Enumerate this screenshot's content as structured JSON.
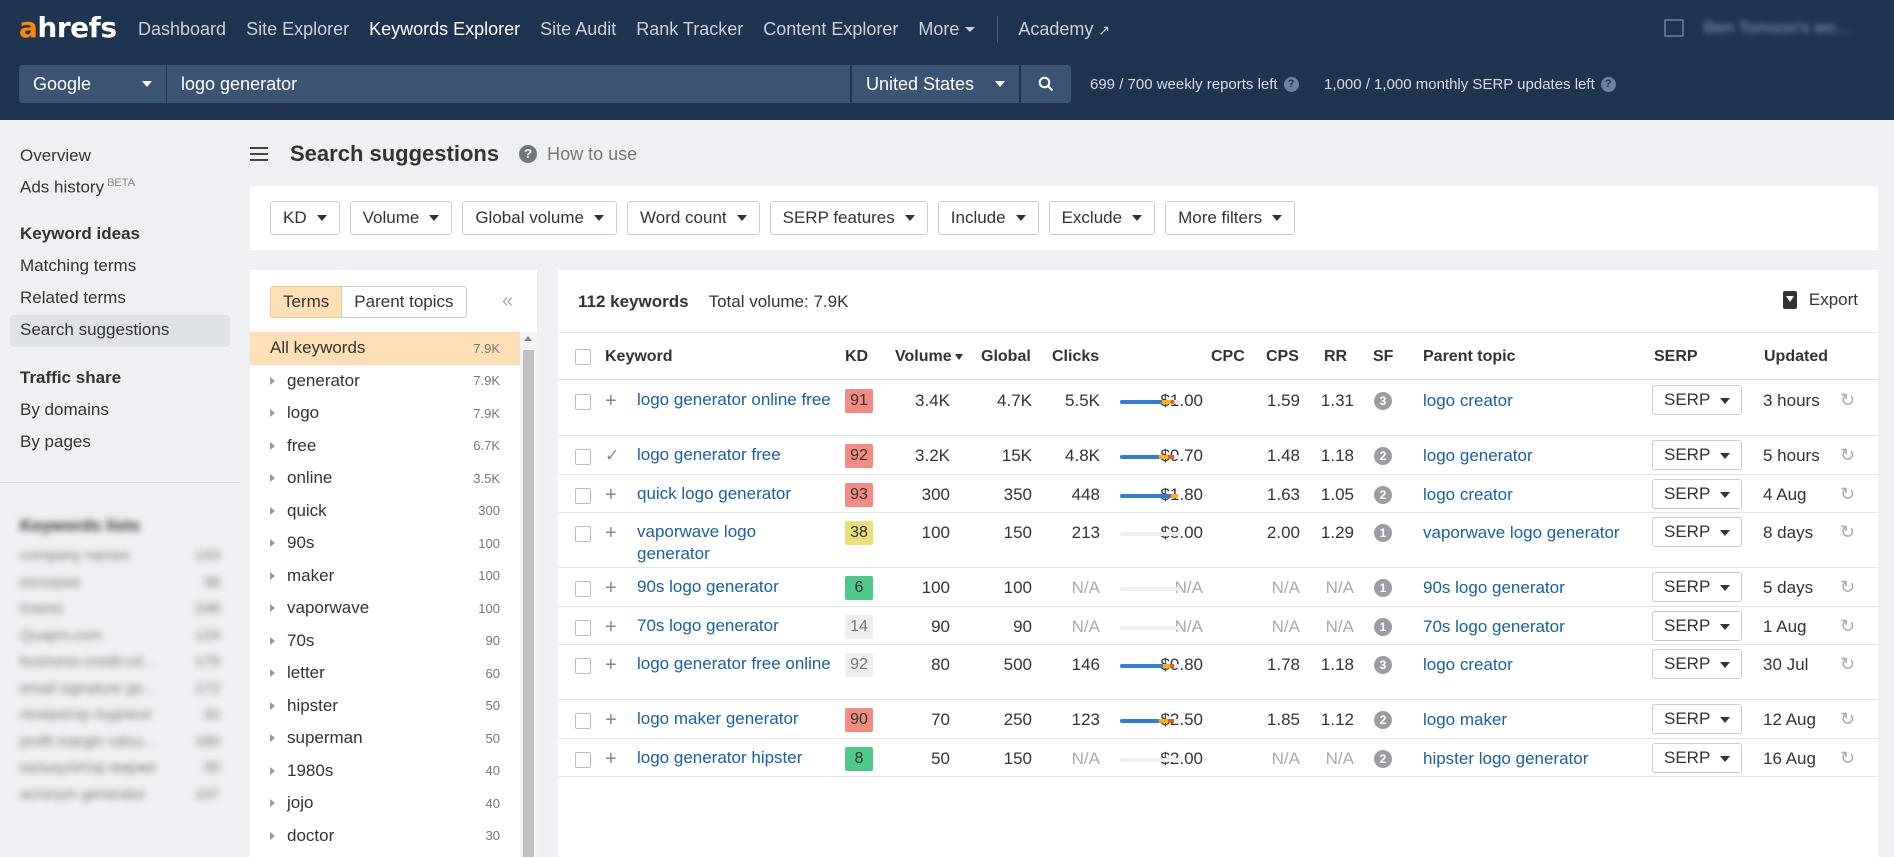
{
  "brand": {
    "logo_a": "a",
    "logo_rest": "hrefs",
    "accent": "#ff8800",
    "nav_bg": "#1f3450"
  },
  "nav": {
    "items": [
      {
        "label": "Dashboard",
        "active": false
      },
      {
        "label": "Site Explorer",
        "active": false
      },
      {
        "label": "Keywords Explorer",
        "active": true
      },
      {
        "label": "Site Audit",
        "active": false
      },
      {
        "label": "Rank Tracker",
        "active": false
      },
      {
        "label": "Content Explorer",
        "active": false
      }
    ],
    "more": "More",
    "academy": "Academy",
    "account": "Ben Tomson's wo..."
  },
  "search": {
    "engine": "Google",
    "query": "logo generator",
    "country": "United States",
    "quota_reports": "699 / 700 weekly reports left",
    "quota_serp": "1,000 / 1,000 monthly SERP updates left"
  },
  "sidebar": {
    "overview": "Overview",
    "ads_history": "Ads history",
    "beta": "BETA",
    "keyword_ideas_heading": "Keyword ideas",
    "matching_terms": "Matching terms",
    "related_terms": "Related terms",
    "search_suggestions": "Search suggestions",
    "traffic_share_heading": "Traffic share",
    "by_domains": "By domains",
    "by_pages": "By pages",
    "keywords_lists_heading": "Keywords lists",
    "lists": [
      {
        "name": "company names",
        "count": "143"
      },
      {
        "name": "escorpse",
        "count": "38"
      },
      {
        "name": "Insess",
        "count": "248"
      },
      {
        "name": "Quaprs.com",
        "count": "124"
      },
      {
        "name": "business-credit-cd...",
        "count": "179"
      },
      {
        "name": "email signature ge...",
        "count": "172"
      },
      {
        "name": "генератор подписи",
        "count": "32"
      },
      {
        "name": "profit margin calcu...",
        "count": "180"
      },
      {
        "name": "калькулятор маржи",
        "count": "30"
      },
      {
        "name": "acronym generator",
        "count": "107"
      }
    ]
  },
  "main": {
    "title": "Search suggestions",
    "how_to_use": "How to use",
    "filters": [
      "KD",
      "Volume",
      "Global volume",
      "Word count",
      "SERP features",
      "Include",
      "Exclude",
      "More filters"
    ]
  },
  "terms_panel": {
    "tab_terms": "Terms",
    "tab_parent": "Parent topics",
    "collapse": "«",
    "all": {
      "label": "All keywords",
      "count": "7.9K"
    },
    "items": [
      {
        "label": "generator",
        "count": "7.9K"
      },
      {
        "label": "logo",
        "count": "7.9K"
      },
      {
        "label": "free",
        "count": "6.7K"
      },
      {
        "label": "online",
        "count": "3.5K"
      },
      {
        "label": "quick",
        "count": "300"
      },
      {
        "label": "90s",
        "count": "100"
      },
      {
        "label": "maker",
        "count": "100"
      },
      {
        "label": "vaporwave",
        "count": "100"
      },
      {
        "label": "70s",
        "count": "90"
      },
      {
        "label": "letter",
        "count": "60"
      },
      {
        "label": "hipster",
        "count": "50"
      },
      {
        "label": "superman",
        "count": "50"
      },
      {
        "label": "1980s",
        "count": "40"
      },
      {
        "label": "jojo",
        "count": "40"
      },
      {
        "label": "doctor",
        "count": "30"
      }
    ]
  },
  "table": {
    "count": "112 keywords",
    "total_volume": "Total volume: 7.9K",
    "export": "Export",
    "headers": {
      "keyword": "Keyword",
      "kd": "KD",
      "volume": "Volume",
      "global": "Global",
      "clicks": "Clicks",
      "cpc": "CPC",
      "cps": "CPS",
      "rr": "RR",
      "sf": "SF",
      "parent": "Parent topic",
      "serp": "SERP",
      "updated": "Updated"
    },
    "rows": [
      {
        "keyword": "logo generator online free",
        "marker": "+",
        "kd": "91",
        "kd_color": "#f28b82",
        "volume": "3.4K",
        "global": "4.7K",
        "clicks": "5.5K",
        "clicks_na": false,
        "bar": [
          0.7,
          0.15,
          0.05
        ],
        "cpc": "$1.00",
        "cps": "1.59",
        "rr": "1.31",
        "sf": "3",
        "parent": "logo creator",
        "serp": "SERP",
        "updated": "3 hours"
      },
      {
        "keyword": "logo generator free",
        "marker": "✓",
        "kd": "92",
        "kd_color": "#f28b82",
        "volume": "3.2K",
        "global": "15K",
        "clicks": "4.8K",
        "clicks_na": false,
        "bar": [
          0.65,
          0.15,
          0.1
        ],
        "cpc": "$0.70",
        "cps": "1.48",
        "rr": "1.18",
        "sf": "2",
        "parent": "logo generator",
        "serp": "SERP",
        "updated": "5 hours"
      },
      {
        "keyword": "quick logo generator",
        "marker": "+",
        "kd": "93",
        "kd_color": "#f28b82",
        "volume": "300",
        "global": "350",
        "clicks": "448",
        "clicks_na": false,
        "bar": [
          0.85,
          0.12,
          0.0
        ],
        "cpc": "$1.80",
        "cps": "1.63",
        "rr": "1.05",
        "sf": "2",
        "parent": "logo creator",
        "serp": "SERP",
        "updated": "4 Aug"
      },
      {
        "keyword": "vaporwave logo generator",
        "marker": "+",
        "kd": "38",
        "kd_color": "#e9e07a",
        "volume": "100",
        "global": "150",
        "clicks": "213",
        "clicks_na": false,
        "bar": [
          0,
          0,
          0
        ],
        "cpc": "$8.00",
        "cps": "2.00",
        "rr": "1.29",
        "sf": "1",
        "parent": "vaporwave logo generator",
        "serp": "SERP",
        "updated": "8 days"
      },
      {
        "keyword": "90s logo generator",
        "marker": "+",
        "kd": "6",
        "kd_color": "#4fc98a",
        "volume": "100",
        "global": "100",
        "clicks": "N/A",
        "clicks_na": true,
        "bar": [
          0,
          0,
          0
        ],
        "cpc": "N/A",
        "cps": "N/A",
        "rr": "N/A",
        "sf": "1",
        "parent": "90s logo generator",
        "serp": "SERP",
        "updated": "5 days"
      },
      {
        "keyword": "70s logo generator",
        "marker": "+",
        "kd": "14",
        "kd_color": "#eceef0",
        "volume": "90",
        "global": "90",
        "clicks": "N/A",
        "clicks_na": true,
        "bar": [
          0,
          0,
          0
        ],
        "cpc": "N/A",
        "cps": "N/A",
        "rr": "N/A",
        "sf": "1",
        "parent": "70s logo generator",
        "serp": "SERP",
        "updated": "1 Aug"
      },
      {
        "keyword": "logo generator free online",
        "marker": "+",
        "kd": "92",
        "kd_color": "#eceef0",
        "volume": "80",
        "global": "500",
        "clicks": "146",
        "clicks_na": false,
        "bar": [
          0.72,
          0.12,
          0.06
        ],
        "cpc": "$0.80",
        "cps": "1.78",
        "rr": "1.18",
        "sf": "3",
        "parent": "logo creator",
        "serp": "SERP",
        "updated": "30 Jul"
      },
      {
        "keyword": "logo maker generator",
        "marker": "+",
        "kd": "90",
        "kd_color": "#f28b82",
        "volume": "70",
        "global": "250",
        "clicks": "123",
        "clicks_na": false,
        "bar": [
          0.65,
          0.15,
          0.1
        ],
        "cpc": "$2.50",
        "cps": "1.85",
        "rr": "1.12",
        "sf": "2",
        "parent": "logo maker",
        "serp": "SERP",
        "updated": "12 Aug"
      },
      {
        "keyword": "logo generator hipster",
        "marker": "+",
        "kd": "8",
        "kd_color": "#4fc98a",
        "volume": "50",
        "global": "150",
        "clicks": "N/A",
        "clicks_na": true,
        "bar": [
          0,
          0,
          0
        ],
        "cpc": "$2.00",
        "cps": "N/A",
        "rr": "N/A",
        "sf": "2",
        "parent": "hipster logo generator",
        "serp": "SERP",
        "updated": "16 Aug"
      }
    ]
  }
}
